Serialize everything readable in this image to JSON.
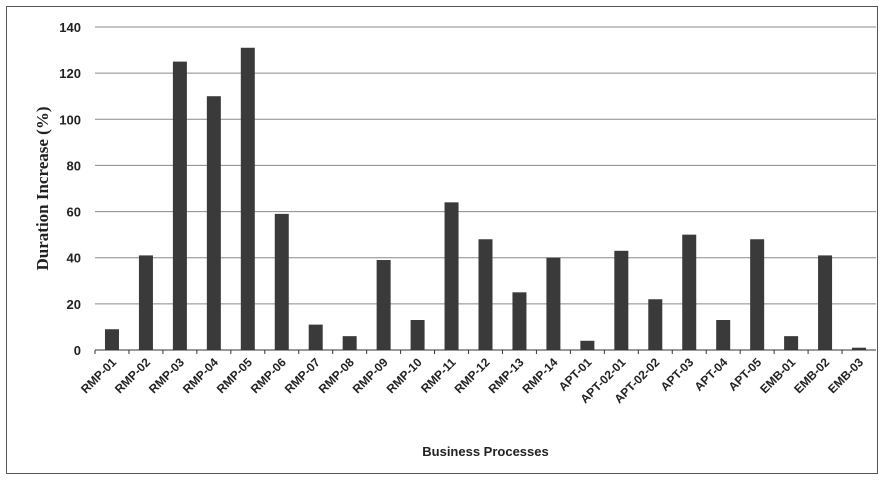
{
  "chart_data": {
    "type": "bar",
    "title": "",
    "xlabel": "Business Processes",
    "ylabel": "Duration Increase  (%)",
    "ylim": [
      0,
      140
    ],
    "yticks": [
      0,
      20,
      40,
      60,
      80,
      100,
      120,
      140
    ],
    "grid": true,
    "legend": "none",
    "bar_color": "#3a3a3a",
    "categories": [
      "RMP-01",
      "RMP-02",
      "RMP-03",
      "RMP-04",
      "RMP-05",
      "RMP-06",
      "RMP-07",
      "RMP-08",
      "RMP-09",
      "RMP-10",
      "RMP-11",
      "RMP-12",
      "RMP-13",
      "RMP-14",
      "APT-01",
      "APT-02-01",
      "APT-02-02",
      "APT-03",
      "APT-04",
      "APT-05",
      "EMB-01",
      "EMB-02",
      "EMB-03"
    ],
    "values": [
      9,
      41,
      125,
      110,
      131,
      59,
      11,
      6,
      39,
      13,
      64,
      48,
      25,
      40,
      4,
      43,
      22,
      50,
      13,
      48,
      6,
      41,
      1
    ]
  }
}
